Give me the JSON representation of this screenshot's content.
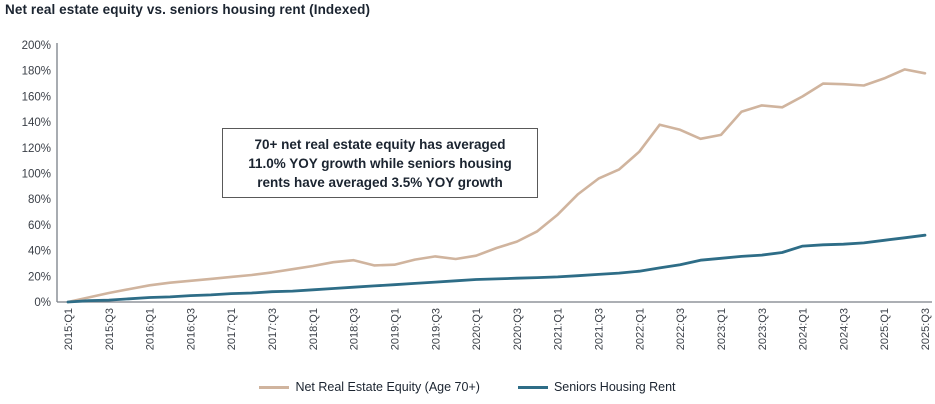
{
  "title": "Net real estate equity vs. seniors housing rent (Indexed)",
  "colors": {
    "equity_line": "#d0b49e",
    "rent_line": "#2e6d87",
    "title_text": "#1b2430",
    "tick_text": "#3a3f47",
    "axis_line": "#7a7f87",
    "annotation_border": "#595959"
  },
  "annotation": {
    "line1": "70+ net real estate equity has averaged",
    "line2": "11.0% YOY growth while seniors housing",
    "line3": "rents have averaged 3.5% YOY growth"
  },
  "legend": [
    {
      "label": "Net Real Estate Equity (Age 70+)",
      "color": "#d0b49e"
    },
    {
      "label": "Seniors Housing Rent",
      "color": "#2e6d87"
    }
  ],
  "chart_data": {
    "type": "line",
    "title": "Net real estate equity vs. seniors housing rent (Indexed)",
    "xlabel": "",
    "ylabel": "",
    "ylim": [
      0,
      200
    ],
    "y_ticks": [
      0,
      20,
      40,
      60,
      80,
      100,
      120,
      140,
      160,
      180,
      200
    ],
    "y_tick_suffix": "%",
    "grid": false,
    "legend_position": "bottom",
    "x_tick_every": 2,
    "x": [
      "2015:Q1",
      "2015:Q2",
      "2015:Q3",
      "2015:Q4",
      "2016:Q1",
      "2016:Q2",
      "2016:Q3",
      "2016:Q4",
      "2017:Q1",
      "2017:Q2",
      "2017:Q3",
      "2017:Q4",
      "2018:Q1",
      "2018:Q2",
      "2018:Q3",
      "2018:Q4",
      "2019:Q1",
      "2019:Q2",
      "2019:Q3",
      "2019:Q4",
      "2020:Q1",
      "2020:Q2",
      "2020:Q3",
      "2020:Q4",
      "2021:Q1",
      "2021:Q2",
      "2021:Q3",
      "2021:Q4",
      "2022:Q1",
      "2022:Q2",
      "2022:Q3",
      "2022:Q4",
      "2023:Q1",
      "2023:Q2",
      "2023:Q3",
      "2023:Q4",
      "2024:Q1",
      "2024:Q2",
      "2024:Q3",
      "2024:Q4",
      "2025:Q1",
      "2025:Q2",
      "2025:Q3"
    ],
    "series": [
      {
        "name": "Net Real Estate Equity (Age 70+)",
        "color": "#d0b49e",
        "stroke_width": 2.6,
        "values": [
          0,
          3.5,
          7,
          10,
          13,
          15,
          16.5,
          18,
          19.5,
          21,
          23,
          25.5,
          28,
          31,
          32.5,
          28.5,
          29,
          33,
          35.5,
          33.5,
          36,
          42,
          47,
          55,
          68,
          84,
          96,
          103,
          117,
          138,
          134,
          127,
          130,
          148,
          153,
          151.5,
          160,
          170,
          169.5,
          168.5,
          174,
          181,
          178
        ]
      },
      {
        "name": "Seniors Housing Rent",
        "color": "#2e6d87",
        "stroke_width": 2.8,
        "values": [
          0,
          1,
          1.5,
          2.5,
          3.5,
          4,
          5,
          5.5,
          6.5,
          7,
          8,
          8.5,
          9.5,
          10.5,
          11.5,
          12.5,
          13.5,
          14.5,
          15.5,
          16.5,
          17.5,
          18,
          18.5,
          19,
          19.5,
          20.5,
          21.5,
          22.5,
          24,
          26.5,
          29,
          32.5,
          34,
          35.5,
          36.5,
          38.5,
          43.5,
          44.5,
          45,
          46,
          48,
          50,
          52
        ]
      }
    ]
  }
}
